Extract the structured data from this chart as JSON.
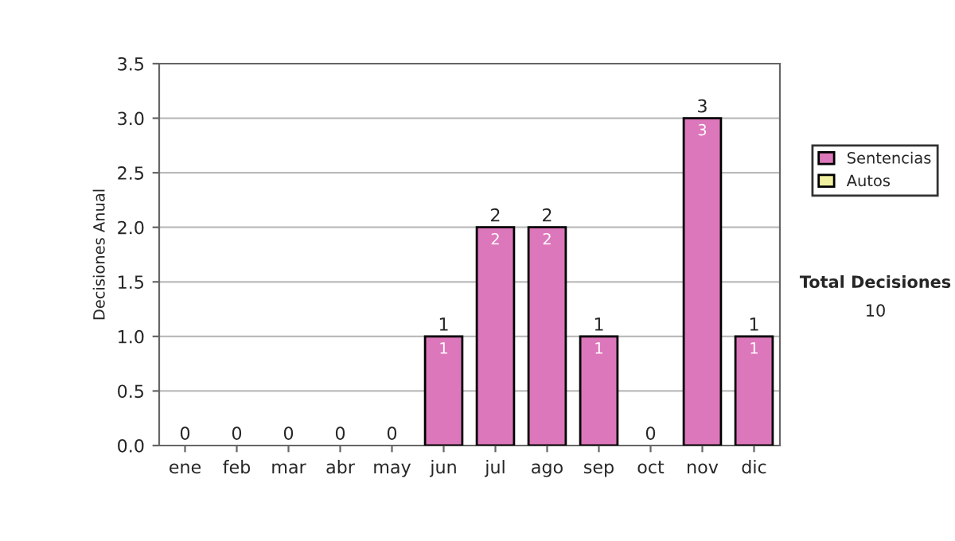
{
  "chart_data": {
    "type": "bar",
    "stacked": true,
    "ylabel": "Decisiones Anual",
    "categories": [
      "ene",
      "feb",
      "mar",
      "abr",
      "may",
      "jun",
      "jul",
      "ago",
      "sep",
      "oct",
      "nov",
      "dic"
    ],
    "series": [
      {
        "name": "Sentencias",
        "color": "#dd77bb",
        "values": [
          0,
          0,
          0,
          0,
          0,
          1,
          2,
          2,
          1,
          0,
          3,
          1
        ],
        "value_labels": [
          null,
          null,
          null,
          null,
          null,
          "1",
          "2",
          "2",
          "1",
          null,
          "3",
          "1"
        ]
      },
      {
        "name": "Autos",
        "color": "#f0f0a0",
        "values": [
          0,
          0,
          0,
          0,
          0,
          0,
          0,
          0,
          0,
          0,
          0,
          0
        ]
      }
    ],
    "totals": [
      "0",
      "0",
      "0",
      "0",
      "0",
      "1",
      "2",
      "2",
      "1",
      "0",
      "3",
      "1"
    ],
    "ylim": [
      0,
      3.5
    ],
    "yticks": [
      {
        "value": 0,
        "label": "0.0"
      },
      {
        "value": 0.5,
        "label": "0.5"
      },
      {
        "value": 1,
        "label": "1.0"
      },
      {
        "value": 1.5,
        "label": "1.5"
      },
      {
        "value": 2,
        "label": "2.0"
      },
      {
        "value": 2.5,
        "label": "2.5"
      },
      {
        "value": 3,
        "label": "3.0"
      },
      {
        "value": 3.5,
        "label": "3.5"
      }
    ],
    "grid": "y",
    "legend": "right",
    "annotations": [
      "Total Decisiones",
      "10"
    ]
  }
}
